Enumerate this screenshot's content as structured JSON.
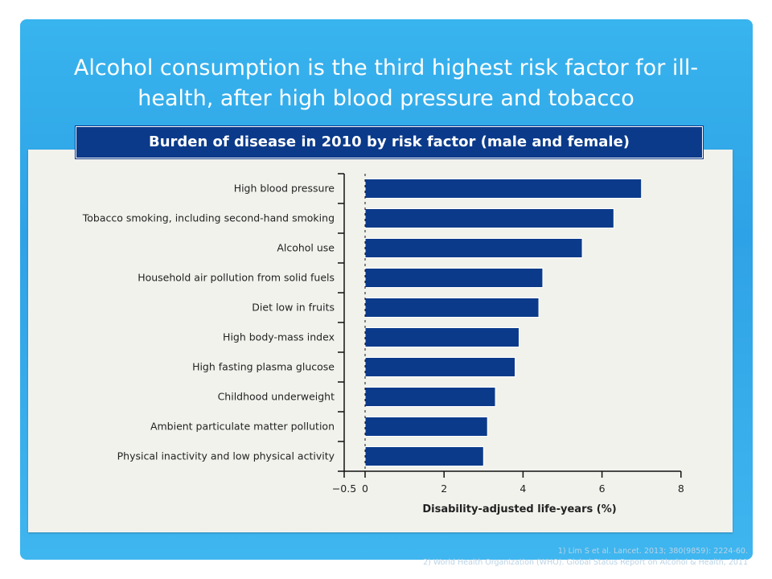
{
  "title": "Alcohol consumption is the third highest risk factor for ill-health, after high blood pressure and tobacco",
  "chart_title": "Burden of disease in 2010 by risk factor (male and female)",
  "colors": {
    "bar": "#0b3a8a",
    "background": "#2ea2e6",
    "panel": "#f2f2ed"
  },
  "chart_data": {
    "type": "bar",
    "orientation": "horizontal",
    "title": "Burden of disease in 2010 by risk factor (male and female)",
    "xlabel": "Disability-adjusted life-years (%)",
    "ylabel": "",
    "xlim": [
      -0.5,
      8
    ],
    "xticks": [
      "−0.5",
      "0",
      "2",
      "4",
      "6",
      "8"
    ],
    "xtick_values": [
      -0.5,
      0,
      2,
      4,
      6,
      8
    ],
    "categories": [
      "High blood pressure",
      "Tobacco smoking, including second-hand smoking",
      "Alcohol use",
      "Household air pollution from solid fuels",
      "Diet low in fruits",
      "High body-mass index",
      "High fasting plasma glucose",
      "Childhood underweight",
      "Ambient particulate matter pollution",
      "Physical inactivity and low physical activity"
    ],
    "values": [
      7.0,
      6.3,
      5.5,
      4.5,
      4.4,
      3.9,
      3.8,
      3.3,
      3.1,
      3.0
    ]
  },
  "sources": [
    "1) Lim S et al. Lancet. 2013; 380(9859): 2224-60.",
    "2) World Health Organization (WHO). Global Status Report on Alcohol & Health, 2011"
  ]
}
